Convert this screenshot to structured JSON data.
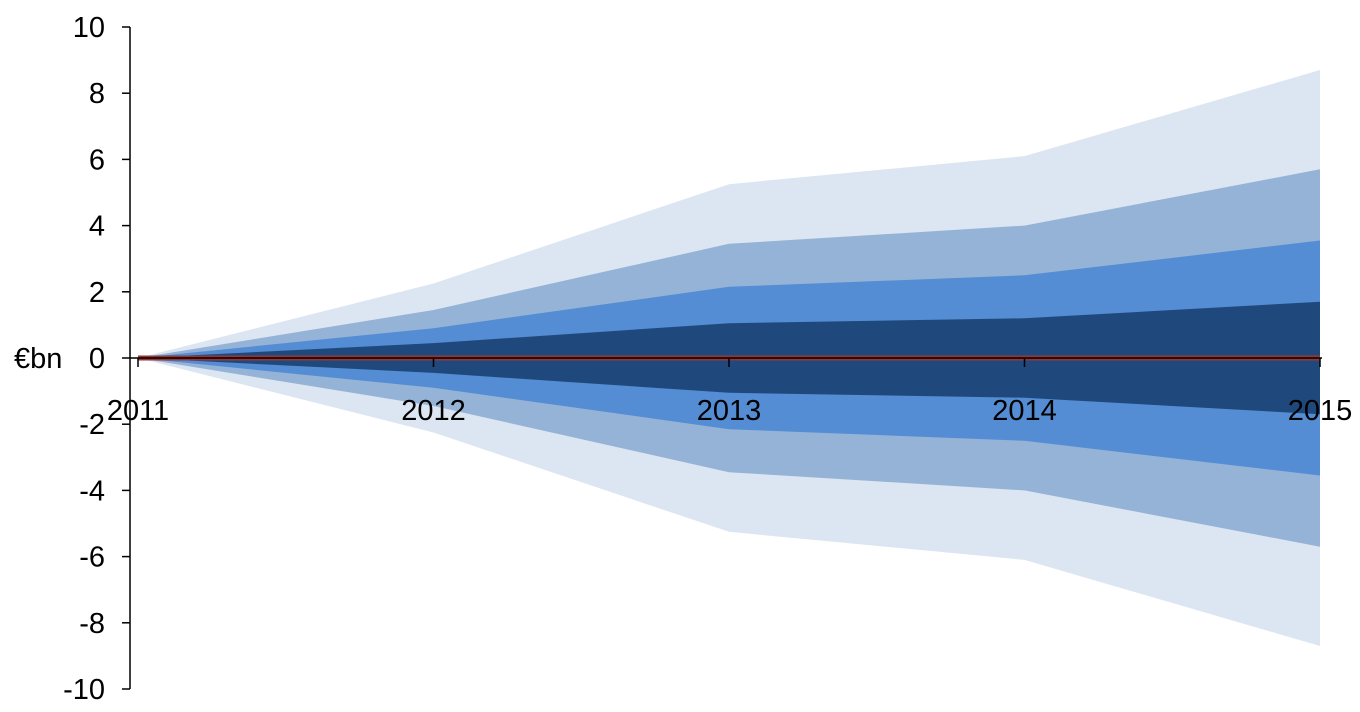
{
  "chart_data": {
    "type": "area",
    "title": "",
    "xlabel": "",
    "ylabel": "€bn",
    "x": [
      "2011",
      "2012",
      "2013",
      "2014",
      "2015"
    ],
    "ylim": [
      -10,
      10
    ],
    "yticks": [
      10,
      8,
      6,
      4,
      2,
      0,
      -2,
      -4,
      -6,
      -8,
      -10
    ],
    "grid": false,
    "legend": "none",
    "bands": [
      {
        "upper": [
          0,
          2.25,
          5.25,
          6.1,
          8.7
        ],
        "lower": [
          0,
          -2.25,
          -5.25,
          -6.1,
          -8.7
        ],
        "color": "#dce5f2"
      },
      {
        "upper": [
          0,
          1.45,
          3.45,
          4.0,
          5.7
        ],
        "lower": [
          0,
          -1.45,
          -3.45,
          -4.0,
          -5.7
        ],
        "color": "#95b3d7"
      },
      {
        "upper": [
          0,
          0.9,
          2.15,
          2.5,
          3.55
        ],
        "lower": [
          0,
          -0.9,
          -2.15,
          -2.5,
          -3.55
        ],
        "color": "#548dd4"
      },
      {
        "upper": [
          0,
          0.45,
          1.05,
          1.2,
          1.7
        ],
        "lower": [
          0,
          -0.45,
          -1.05,
          -1.2,
          -1.7
        ],
        "color": "#1f497d"
      }
    ],
    "central_line": {
      "values": [
        0,
        0,
        0,
        0,
        0
      ],
      "color": "#943634"
    }
  }
}
